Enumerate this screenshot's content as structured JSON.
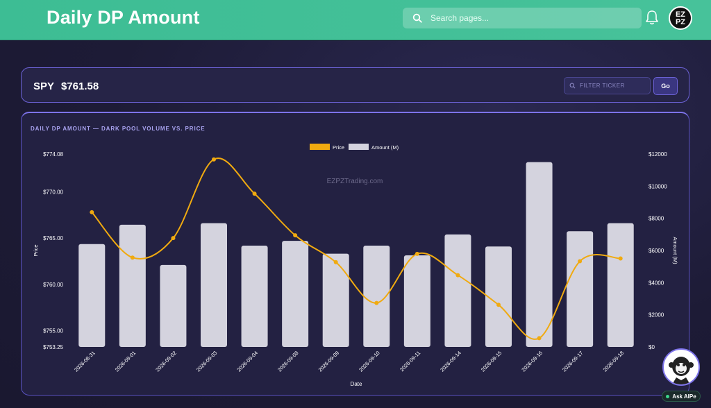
{
  "header": {
    "title": "Daily DP Amount",
    "search_placeholder": "Search pages...",
    "avatar_text_top": "EZ",
    "avatar_text_bottom": "PZ"
  },
  "ticker": {
    "symbol": "SPY",
    "price": "$761.58",
    "filter_placeholder": "FILTER TICKER",
    "go_label": "Go"
  },
  "chart_card": {
    "title": "DAILY DP AMOUNT — DARK POOL VOLUME VS. PRICE",
    "watermark": "EZPZTrading.com"
  },
  "ask_ai": {
    "label": "Ask AIPe"
  },
  "colors": {
    "header_green": "#3dbd94",
    "price_line": "#f0aa10",
    "amount_bar": "#d4d3de",
    "card_border": "#6c62d6"
  },
  "chart_data": {
    "type": "bar",
    "categories": [
      "2026-08-31",
      "2026-09-01",
      "2026-09-02",
      "2026-09-03",
      "2026-09-04",
      "2026-09-08",
      "2026-09-09",
      "2026-09-10",
      "2026-09-11",
      "2026-09-14",
      "2026-09-15",
      "2026-09-16",
      "2026-09-17",
      "2026-09-18"
    ],
    "series": [
      {
        "name": "Price",
        "type": "line",
        "axis": "left",
        "values": [
          767.8,
          762.9,
          765.0,
          773.5,
          769.8,
          765.3,
          762.4,
          758.0,
          763.3,
          761.0,
          757.8,
          754.2,
          762.5,
          762.8
        ]
      },
      {
        "name": "Amount (M)",
        "type": "bar",
        "axis": "right",
        "values": [
          6400,
          7600,
          5100,
          7700,
          6300,
          6600,
          5800,
          6300,
          5700,
          7000,
          6250,
          11500,
          7200,
          7700
        ]
      }
    ],
    "xlabel": "Date",
    "ylabel": "Price",
    "y2label": "Amount (M)",
    "y_ticks": [
      "$774.08",
      "$770.00",
      "$765.00",
      "$760.00",
      "$755.00",
      "$753.25"
    ],
    "ylim": [
      753.25,
      774.08
    ],
    "y2_ticks": [
      "$12000",
      "$10000",
      "$8000",
      "$6000",
      "$4000",
      "$2000",
      "$0"
    ],
    "y2lim": [
      0,
      12000
    ],
    "legend_position": "top-center",
    "grid": false
  }
}
